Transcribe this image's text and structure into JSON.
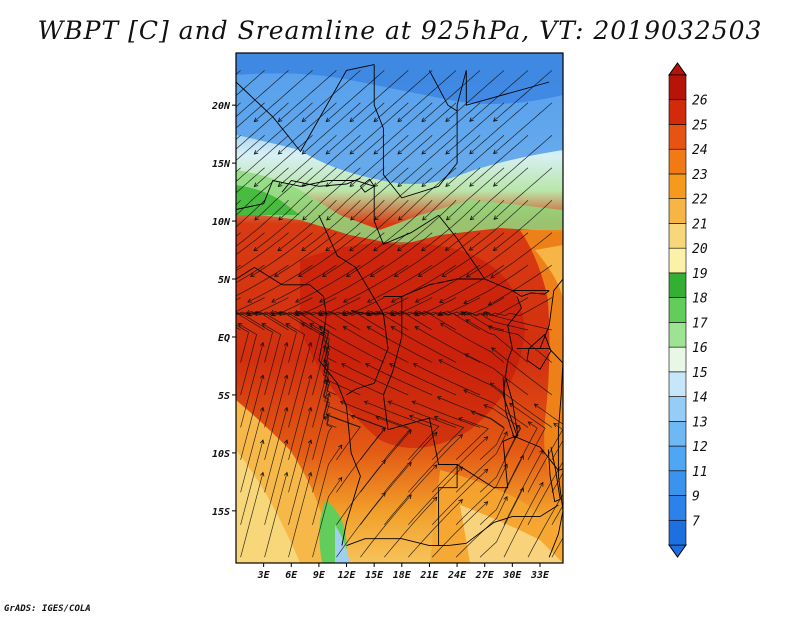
{
  "title": "WBPT [C] and Sreamline at 925hPa, VT: 2019032503",
  "credit": "GrADS: IGES/COLA",
  "map": {
    "lat_labels": [
      "20N",
      "15N",
      "10N",
      "5N",
      "EQ",
      "5S",
      "10S",
      "15S"
    ],
    "lon_labels": [
      "3E",
      "6E",
      "9E",
      "12E",
      "15E",
      "18E",
      "21E",
      "24E",
      "27E",
      "30E",
      "33E"
    ],
    "lon_range": [
      0,
      35.5
    ],
    "lat_range": [
      -19.5,
      24.5
    ]
  },
  "colorbar": {
    "levels": [
      "7",
      "9",
      "11",
      "12",
      "13",
      "14",
      "15",
      "16",
      "17",
      "18",
      "19",
      "20",
      "21",
      "22",
      "23",
      "24",
      "25",
      "26"
    ],
    "colors": [
      "#1e6fe0",
      "#2b82ea",
      "#3a94ee",
      "#4fa6f2",
      "#6eb8f4",
      "#96cdf7",
      "#c6e6fa",
      "#e8f7e6",
      "#9ee394",
      "#63cd5c",
      "#33b033",
      "#fbf1a8",
      "#f8d77a",
      "#f7b545",
      "#f59a1c",
      "#f17a14",
      "#e65312",
      "#d42a0c",
      "#b81308"
    ]
  }
}
